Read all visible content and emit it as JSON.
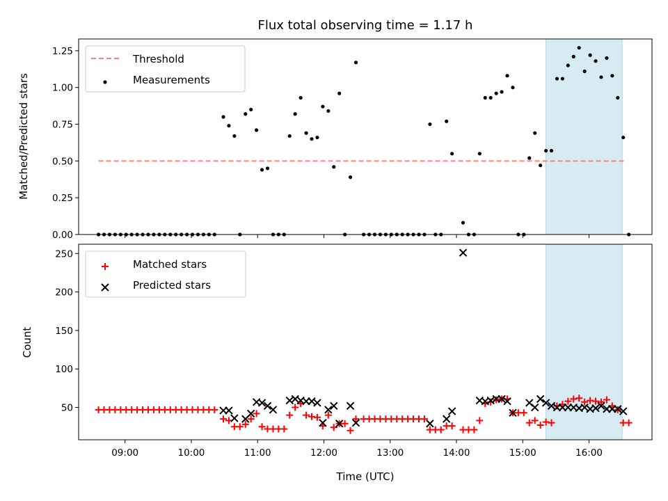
{
  "chart_data": [
    {
      "type": "scatter",
      "title": "Flux total observing time = 1.17 h",
      "ylabel": "Matched/Predicted stars",
      "xlabel": "",
      "xlim": [
        "08:18",
        "16:57"
      ],
      "ylim": [
        0,
        1.33
      ],
      "yticks": [
        0,
        0.25,
        0.5,
        0.75,
        1.0,
        1.25
      ],
      "ytick_labels": [
        "0.00",
        "0.25",
        "0.50",
        "0.75",
        "1.00",
        "1.25"
      ],
      "highlight_span": [
        "15:21",
        "16:30"
      ],
      "highlight_color": "#add8e6",
      "legend_position": "upper left",
      "series": [
        {
          "name": "Threshold",
          "kind": "line",
          "color": "#ff7f7f",
          "style": "dashed",
          "x": [
            "08:36",
            "16:33"
          ],
          "y": [
            0.5,
            0.5
          ]
        },
        {
          "name": "Measurements",
          "kind": "scatter",
          "marker": "dot",
          "color": "#000000",
          "points": [
            [
              "08:36",
              0.0
            ],
            [
              "08:41",
              0.0
            ],
            [
              "08:46",
              0.0
            ],
            [
              "08:51",
              0.0
            ],
            [
              "08:56",
              0.0
            ],
            [
              "09:01",
              0.0
            ],
            [
              "09:06",
              0.0
            ],
            [
              "09:11",
              0.0
            ],
            [
              "09:16",
              0.0
            ],
            [
              "09:21",
              0.0
            ],
            [
              "09:26",
              0.0
            ],
            [
              "09:31",
              0.0
            ],
            [
              "09:36",
              0.0
            ],
            [
              "09:41",
              0.0
            ],
            [
              "09:46",
              0.0
            ],
            [
              "09:51",
              0.0
            ],
            [
              "09:56",
              0.0
            ],
            [
              "10:01",
              0.0
            ],
            [
              "10:06",
              0.0
            ],
            [
              "10:11",
              0.0
            ],
            [
              "10:16",
              0.0
            ],
            [
              "10:21",
              0.0
            ],
            [
              "10:29",
              0.8
            ],
            [
              "10:34",
              0.74
            ],
            [
              "10:39",
              0.67
            ],
            [
              "10:44",
              0.0
            ],
            [
              "10:49",
              0.82
            ],
            [
              "10:54",
              0.85
            ],
            [
              "10:59",
              0.71
            ],
            [
              "11:04",
              0.44
            ],
            [
              "11:09",
              0.45
            ],
            [
              "11:14",
              0.0
            ],
            [
              "11:19",
              0.0
            ],
            [
              "11:24",
              0.0
            ],
            [
              "11:29",
              0.67
            ],
            [
              "11:34",
              0.82
            ],
            [
              "11:39",
              0.93
            ],
            [
              "11:44",
              0.69
            ],
            [
              "11:49",
              0.65
            ],
            [
              "11:54",
              0.66
            ],
            [
              "11:59",
              0.87
            ],
            [
              "12:04",
              0.84
            ],
            [
              "12:09",
              0.46
            ],
            [
              "12:14",
              0.96
            ],
            [
              "12:19",
              0.0
            ],
            [
              "12:24",
              0.39
            ],
            [
              "12:29",
              1.17
            ],
            [
              "12:36",
              0.0
            ],
            [
              "12:41",
              0.0
            ],
            [
              "12:46",
              0.0
            ],
            [
              "12:51",
              0.0
            ],
            [
              "12:56",
              0.0
            ],
            [
              "13:01",
              0.0
            ],
            [
              "13:06",
              0.0
            ],
            [
              "13:11",
              0.0
            ],
            [
              "13:16",
              0.0
            ],
            [
              "13:21",
              0.0
            ],
            [
              "13:26",
              0.0
            ],
            [
              "13:31",
              0.0
            ],
            [
              "13:36",
              0.75
            ],
            [
              "13:41",
              0.0
            ],
            [
              "13:46",
              0.0
            ],
            [
              "13:51",
              0.77
            ],
            [
              "13:56",
              0.55
            ],
            [
              "14:06",
              0.08
            ],
            [
              "14:11",
              0.0
            ],
            [
              "14:16",
              0.0
            ],
            [
              "14:21",
              0.55
            ],
            [
              "14:26",
              0.93
            ],
            [
              "14:31",
              0.93
            ],
            [
              "14:36",
              0.96
            ],
            [
              "14:41",
              0.97
            ],
            [
              "14:46",
              1.08
            ],
            [
              "14:51",
              1.0
            ],
            [
              "14:56",
              0.0
            ],
            [
              "15:01",
              0.0
            ],
            [
              "15:06",
              0.52
            ],
            [
              "15:11",
              0.69
            ],
            [
              "15:16",
              0.47
            ],
            [
              "15:21",
              0.57
            ],
            [
              "15:26",
              0.57
            ],
            [
              "15:31",
              1.06
            ],
            [
              "15:36",
              1.06
            ],
            [
              "15:41",
              1.15
            ],
            [
              "15:46",
              1.21
            ],
            [
              "15:51",
              1.27
            ],
            [
              "15:56",
              1.11
            ],
            [
              "16:01",
              1.22
            ],
            [
              "16:06",
              1.18
            ],
            [
              "16:11",
              1.07
            ],
            [
              "16:16",
              1.2
            ],
            [
              "16:21",
              1.08
            ],
            [
              "16:26",
              0.93
            ],
            [
              "16:31",
              0.66
            ],
            [
              "16:36",
              0.0
            ]
          ]
        }
      ]
    },
    {
      "type": "scatter",
      "title": "",
      "ylabel": "Count",
      "xlabel": "Time (UTC)",
      "xlim": [
        "08:18",
        "16:57"
      ],
      "ylim": [
        8,
        262
      ],
      "yticks": [
        50,
        100,
        150,
        200,
        250
      ],
      "ytick_labels": [
        "50",
        "100",
        "150",
        "200",
        "250"
      ],
      "xticks": [
        "09:00",
        "10:00",
        "11:00",
        "12:00",
        "13:00",
        "14:00",
        "15:00",
        "16:00"
      ],
      "xtick_labels": [
        "09:00",
        "10:00",
        "11:00",
        "12:00",
        "13:00",
        "14:00",
        "15:00",
        "16:00"
      ],
      "highlight_span": [
        "15:21",
        "16:30"
      ],
      "highlight_color": "#add8e6",
      "legend_position": "upper left",
      "series": [
        {
          "name": "Matched stars",
          "kind": "scatter",
          "marker": "plus",
          "color": "#ff0000",
          "points": [
            [
              "08:36",
              47
            ],
            [
              "08:41",
              47
            ],
            [
              "08:46",
              47
            ],
            [
              "08:51",
              47
            ],
            [
              "08:56",
              47
            ],
            [
              "09:01",
              47
            ],
            [
              "09:06",
              47
            ],
            [
              "09:11",
              47
            ],
            [
              "09:16",
              47
            ],
            [
              "09:21",
              47
            ],
            [
              "09:26",
              47
            ],
            [
              "09:31",
              47
            ],
            [
              "09:36",
              47
            ],
            [
              "09:41",
              47
            ],
            [
              "09:46",
              47
            ],
            [
              "09:51",
              47
            ],
            [
              "09:56",
              47
            ],
            [
              "10:01",
              47
            ],
            [
              "10:06",
              47
            ],
            [
              "10:11",
              47
            ],
            [
              "10:16",
              47
            ],
            [
              "10:21",
              47
            ],
            [
              "10:29",
              35
            ],
            [
              "10:34",
              33
            ],
            [
              "10:39",
              25
            ],
            [
              "10:44",
              25
            ],
            [
              "10:49",
              28
            ],
            [
              "10:54",
              35
            ],
            [
              "10:59",
              42
            ],
            [
              "11:04",
              25
            ],
            [
              "11:09",
              22
            ],
            [
              "11:14",
              22
            ],
            [
              "11:19",
              22
            ],
            [
              "11:24",
              22
            ],
            [
              "11:29",
              40
            ],
            [
              "11:34",
              50
            ],
            [
              "11:39",
              55
            ],
            [
              "11:44",
              40
            ],
            [
              "11:49",
              38
            ],
            [
              "11:54",
              37
            ],
            [
              "11:59",
              26
            ],
            [
              "12:04",
              40
            ],
            [
              "12:09",
              24
            ],
            [
              "12:14",
              29
            ],
            [
              "12:19",
              29
            ],
            [
              "12:24",
              20
            ],
            [
              "12:29",
              35
            ],
            [
              "12:36",
              35
            ],
            [
              "12:41",
              35
            ],
            [
              "12:46",
              35
            ],
            [
              "12:51",
              35
            ],
            [
              "12:56",
              35
            ],
            [
              "13:01",
              35
            ],
            [
              "13:06",
              35
            ],
            [
              "13:11",
              35
            ],
            [
              "13:16",
              35
            ],
            [
              "13:21",
              35
            ],
            [
              "13:26",
              35
            ],
            [
              "13:31",
              35
            ],
            [
              "13:36",
              21
            ],
            [
              "13:41",
              21
            ],
            [
              "13:46",
              21
            ],
            [
              "13:51",
              26
            ],
            [
              "13:56",
              26
            ],
            [
              "14:06",
              21
            ],
            [
              "14:11",
              21
            ],
            [
              "14:16",
              21
            ],
            [
              "14:21",
              33
            ],
            [
              "14:26",
              55
            ],
            [
              "14:31",
              57
            ],
            [
              "14:36",
              60
            ],
            [
              "14:41",
              61
            ],
            [
              "14:46",
              61
            ],
            [
              "14:51",
              43
            ],
            [
              "14:56",
              43
            ],
            [
              "15:01",
              43
            ],
            [
              "15:06",
              30
            ],
            [
              "15:11",
              33
            ],
            [
              "15:16",
              27
            ],
            [
              "15:21",
              31
            ],
            [
              "15:26",
              30
            ],
            [
              "15:31",
              52
            ],
            [
              "15:36",
              54
            ],
            [
              "15:41",
              58
            ],
            [
              "15:46",
              61
            ],
            [
              "15:51",
              62
            ],
            [
              "15:56",
              57
            ],
            [
              "16:01",
              59
            ],
            [
              "16:06",
              58
            ],
            [
              "16:11",
              57
            ],
            [
              "16:16",
              60
            ],
            [
              "16:21",
              52
            ],
            [
              "16:26",
              47
            ],
            [
              "16:31",
              30
            ],
            [
              "16:36",
              30
            ]
          ]
        },
        {
          "name": "Predicted stars",
          "kind": "scatter",
          "marker": "cross",
          "color": "#000000",
          "points": [
            [
              "10:29",
              46
            ],
            [
              "10:34",
              46
            ],
            [
              "10:39",
              36
            ],
            [
              "10:49",
              35
            ],
            [
              "10:54",
              42
            ],
            [
              "10:59",
              57
            ],
            [
              "11:04",
              56
            ],
            [
              "11:09",
              52
            ],
            [
              "11:14",
              47
            ],
            [
              "11:29",
              59
            ],
            [
              "11:34",
              61
            ],
            [
              "11:39",
              59
            ],
            [
              "11:44",
              58
            ],
            [
              "11:49",
              58
            ],
            [
              "11:54",
              56
            ],
            [
              "11:59",
              30
            ],
            [
              "12:04",
              47
            ],
            [
              "12:09",
              52
            ],
            [
              "12:14",
              29
            ],
            [
              "12:24",
              52
            ],
            [
              "12:29",
              30
            ],
            [
              "13:36",
              29
            ],
            [
              "13:51",
              35
            ],
            [
              "13:56",
              45
            ],
            [
              "14:06",
              251
            ],
            [
              "14:21",
              59
            ],
            [
              "14:26",
              58
            ],
            [
              "14:31",
              59
            ],
            [
              "14:36",
              61
            ],
            [
              "14:41",
              61
            ],
            [
              "14:46",
              58
            ],
            [
              "14:51",
              43
            ],
            [
              "15:06",
              56
            ],
            [
              "15:11",
              50
            ],
            [
              "15:16",
              61
            ],
            [
              "15:21",
              56
            ],
            [
              "15:26",
              52
            ],
            [
              "15:31",
              50
            ],
            [
              "15:36",
              50
            ],
            [
              "15:41",
              50
            ],
            [
              "15:46",
              50
            ],
            [
              "15:51",
              49
            ],
            [
              "15:56",
              50
            ],
            [
              "16:01",
              48
            ],
            [
              "16:06",
              49
            ],
            [
              "16:11",
              52
            ],
            [
              "16:16",
              48
            ],
            [
              "16:21",
              48
            ],
            [
              "16:26",
              48
            ],
            [
              "16:31",
              45
            ]
          ]
        }
      ]
    }
  ]
}
